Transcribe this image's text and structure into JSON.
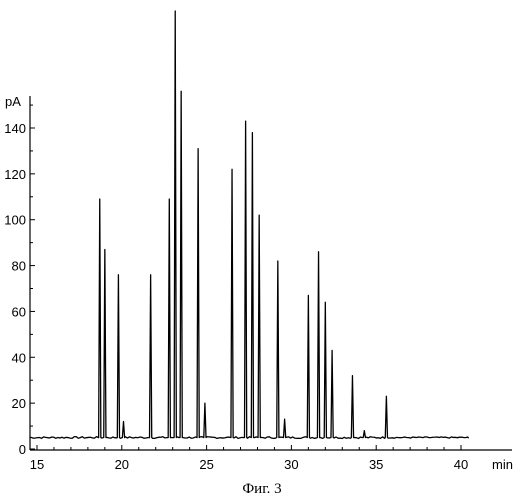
{
  "chart_data": {
    "type": "line",
    "title": "",
    "caption": "Фиг. 3",
    "xlabel": "min",
    "ylabel": "pA",
    "xlim": [
      14.5,
      40.5
    ],
    "ylim": [
      0,
      150
    ],
    "x_ticks": [
      15,
      20,
      25,
      30,
      35,
      40
    ],
    "y_ticks": [
      0,
      20,
      40,
      60,
      80,
      100,
      120,
      140
    ],
    "baseline": 5,
    "grid": false,
    "legend": "none",
    "peaks": [
      {
        "x": 18.7,
        "y": 109
      },
      {
        "x": 19.0,
        "y": 87
      },
      {
        "x": 19.8,
        "y": 76
      },
      {
        "x": 20.1,
        "y": 12
      },
      {
        "x": 21.7,
        "y": 76
      },
      {
        "x": 22.8,
        "y": 109
      },
      {
        "x": 23.15,
        "y": 191
      },
      {
        "x": 23.5,
        "y": 156
      },
      {
        "x": 24.5,
        "y": 131
      },
      {
        "x": 24.9,
        "y": 20
      },
      {
        "x": 26.5,
        "y": 122
      },
      {
        "x": 27.3,
        "y": 143
      },
      {
        "x": 27.7,
        "y": 138
      },
      {
        "x": 28.1,
        "y": 102
      },
      {
        "x": 29.2,
        "y": 82
      },
      {
        "x": 29.6,
        "y": 13
      },
      {
        "x": 31.0,
        "y": 67
      },
      {
        "x": 31.6,
        "y": 86
      },
      {
        "x": 32.0,
        "y": 64
      },
      {
        "x": 32.4,
        "y": 43
      },
      {
        "x": 33.6,
        "y": 32
      },
      {
        "x": 34.3,
        "y": 8
      },
      {
        "x": 35.6,
        "y": 23
      }
    ]
  }
}
